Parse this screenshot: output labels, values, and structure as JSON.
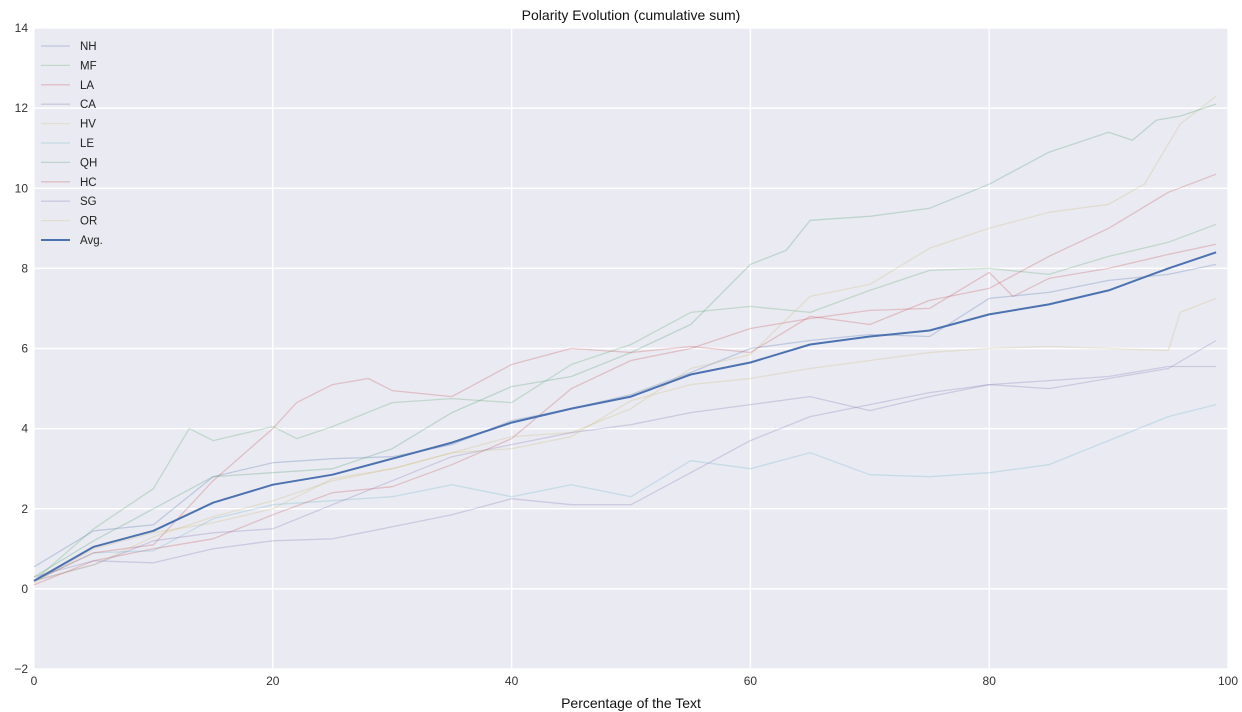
{
  "chart_data": {
    "type": "line",
    "title": "Polarity Evolution (cumulative sum)",
    "xlabel": "Percentage of the Text",
    "ylabel": "",
    "xlim": [
      0,
      100
    ],
    "ylim": [
      -2,
      14
    ],
    "xticks": [
      0,
      20,
      40,
      60,
      80,
      100
    ],
    "yticks": [
      -2,
      0,
      2,
      4,
      6,
      8,
      10,
      12,
      14
    ],
    "grid": true,
    "legend_position": "top-left",
    "background": "#eaeaf2",
    "series": [
      {
        "name": "NH",
        "color": "#4c72b0",
        "alpha": 0.28,
        "width": 1.3,
        "points": [
          [
            0,
            0.55
          ],
          [
            5,
            1.45
          ],
          [
            10,
            1.6
          ],
          [
            15,
            2.8
          ],
          [
            20,
            3.15
          ],
          [
            25,
            3.25
          ],
          [
            30,
            3.3
          ],
          [
            35,
            3.6
          ],
          [
            40,
            4.2
          ],
          [
            45,
            4.5
          ],
          [
            50,
            4.85
          ],
          [
            55,
            5.4
          ],
          [
            60,
            6.0
          ],
          [
            65,
            6.2
          ],
          [
            70,
            6.35
          ],
          [
            75,
            6.3
          ],
          [
            80,
            7.25
          ],
          [
            85,
            7.4
          ],
          [
            90,
            7.7
          ],
          [
            95,
            7.85
          ],
          [
            99,
            8.1
          ]
        ]
      },
      {
        "name": "MF",
        "color": "#55a868",
        "alpha": 0.28,
        "width": 1.3,
        "points": [
          [
            0,
            0.2
          ],
          [
            5,
            1.5
          ],
          [
            8,
            2.1
          ],
          [
            10,
            2.5
          ],
          [
            13,
            4.0
          ],
          [
            15,
            3.7
          ],
          [
            20,
            4.05
          ],
          [
            22,
            3.75
          ],
          [
            25,
            4.05
          ],
          [
            30,
            4.65
          ],
          [
            35,
            4.75
          ],
          [
            40,
            4.65
          ],
          [
            45,
            5.6
          ],
          [
            50,
            6.1
          ],
          [
            55,
            6.9
          ],
          [
            60,
            7.05
          ],
          [
            65,
            6.9
          ],
          [
            70,
            7.45
          ],
          [
            75,
            7.95
          ],
          [
            80,
            8.0
          ],
          [
            85,
            7.85
          ],
          [
            90,
            8.3
          ],
          [
            95,
            8.65
          ],
          [
            99,
            9.1
          ]
        ]
      },
      {
        "name": "LA",
        "color": "#c44e52",
        "alpha": 0.28,
        "width": 1.3,
        "points": [
          [
            0,
            0.1
          ],
          [
            5,
            0.7
          ],
          [
            10,
            1.0
          ],
          [
            15,
            1.25
          ],
          [
            20,
            1.85
          ],
          [
            25,
            2.4
          ],
          [
            30,
            2.55
          ],
          [
            35,
            3.1
          ],
          [
            40,
            3.75
          ],
          [
            45,
            5.0
          ],
          [
            50,
            5.7
          ],
          [
            55,
            6.0
          ],
          [
            60,
            6.5
          ],
          [
            65,
            6.75
          ],
          [
            70,
            6.95
          ],
          [
            75,
            7.0
          ],
          [
            80,
            7.9
          ],
          [
            82,
            7.3
          ],
          [
            85,
            7.75
          ],
          [
            90,
            8.0
          ],
          [
            95,
            8.35
          ],
          [
            99,
            8.6
          ]
        ]
      },
      {
        "name": "CA",
        "color": "#8172b2",
        "alpha": 0.28,
        "width": 1.3,
        "points": [
          [
            0,
            0.3
          ],
          [
            5,
            0.7
          ],
          [
            10,
            0.65
          ],
          [
            15,
            1.0
          ],
          [
            20,
            1.2
          ],
          [
            25,
            1.25
          ],
          [
            30,
            1.55
          ],
          [
            35,
            1.85
          ],
          [
            40,
            2.25
          ],
          [
            45,
            2.1
          ],
          [
            50,
            2.1
          ],
          [
            55,
            2.9
          ],
          [
            60,
            3.7
          ],
          [
            65,
            4.3
          ],
          [
            70,
            4.6
          ],
          [
            75,
            4.9
          ],
          [
            80,
            5.1
          ],
          [
            85,
            5.0
          ],
          [
            90,
            5.25
          ],
          [
            95,
            5.5
          ],
          [
            99,
            6.2
          ]
        ]
      },
      {
        "name": "HV",
        "color": "#ccb974",
        "alpha": 0.28,
        "width": 1.3,
        "points": [
          [
            0,
            0.15
          ],
          [
            5,
            1.0
          ],
          [
            10,
            1.4
          ],
          [
            15,
            1.65
          ],
          [
            20,
            2.0
          ],
          [
            25,
            2.75
          ],
          [
            30,
            3.0
          ],
          [
            35,
            3.4
          ],
          [
            40,
            3.8
          ],
          [
            45,
            3.9
          ],
          [
            50,
            4.5
          ],
          [
            55,
            5.5
          ],
          [
            60,
            5.85
          ],
          [
            65,
            7.3
          ],
          [
            70,
            7.6
          ],
          [
            75,
            8.5
          ],
          [
            80,
            9.0
          ],
          [
            85,
            9.4
          ],
          [
            90,
            9.6
          ],
          [
            93,
            10.1
          ],
          [
            96,
            11.6
          ],
          [
            99,
            12.3
          ]
        ]
      },
      {
        "name": "LE",
        "color": "#64b5cd",
        "alpha": 0.28,
        "width": 1.3,
        "points": [
          [
            0,
            0.2
          ],
          [
            5,
            0.9
          ],
          [
            10,
            0.95
          ],
          [
            15,
            1.75
          ],
          [
            20,
            2.1
          ],
          [
            25,
            2.2
          ],
          [
            30,
            2.3
          ],
          [
            35,
            2.6
          ],
          [
            40,
            2.3
          ],
          [
            45,
            2.6
          ],
          [
            50,
            2.3
          ],
          [
            55,
            3.2
          ],
          [
            60,
            3.0
          ],
          [
            65,
            3.4
          ],
          [
            70,
            2.85
          ],
          [
            75,
            2.8
          ],
          [
            80,
            2.9
          ],
          [
            85,
            3.1
          ],
          [
            90,
            3.7
          ],
          [
            95,
            4.3
          ],
          [
            99,
            4.6
          ]
        ]
      },
      {
        "name": "QH",
        "color": "#4c9f70",
        "alpha": 0.28,
        "width": 1.3,
        "points": [
          [
            0,
            0.3
          ],
          [
            5,
            1.2
          ],
          [
            10,
            2.0
          ],
          [
            15,
            2.8
          ],
          [
            20,
            2.9
          ],
          [
            25,
            3.0
          ],
          [
            30,
            3.5
          ],
          [
            35,
            4.4
          ],
          [
            40,
            5.05
          ],
          [
            45,
            5.3
          ],
          [
            50,
            5.9
          ],
          [
            55,
            6.6
          ],
          [
            60,
            8.1
          ],
          [
            63,
            8.45
          ],
          [
            65,
            9.2
          ],
          [
            70,
            9.3
          ],
          [
            75,
            9.5
          ],
          [
            80,
            10.1
          ],
          [
            85,
            10.9
          ],
          [
            90,
            11.4
          ],
          [
            92,
            11.2
          ],
          [
            94,
            11.7
          ],
          [
            96,
            11.8
          ],
          [
            99,
            12.1
          ]
        ]
      },
      {
        "name": "HC",
        "color": "#c44e52",
        "alpha": 0.28,
        "width": 1.3,
        "points": [
          [
            0,
            0.2
          ],
          [
            5,
            0.9
          ],
          [
            10,
            1.1
          ],
          [
            15,
            2.7
          ],
          [
            20,
            4.0
          ],
          [
            22,
            4.65
          ],
          [
            25,
            5.1
          ],
          [
            28,
            5.25
          ],
          [
            30,
            4.95
          ],
          [
            35,
            4.8
          ],
          [
            40,
            5.6
          ],
          [
            45,
            6.0
          ],
          [
            50,
            5.9
          ],
          [
            55,
            6.05
          ],
          [
            60,
            5.9
          ],
          [
            65,
            6.8
          ],
          [
            70,
            6.6
          ],
          [
            75,
            7.2
          ],
          [
            80,
            7.5
          ],
          [
            85,
            8.3
          ],
          [
            90,
            9.0
          ],
          [
            95,
            9.9
          ],
          [
            99,
            10.35
          ]
        ]
      },
      {
        "name": "SG",
        "color": "#8172b2",
        "alpha": 0.28,
        "width": 1.3,
        "points": [
          [
            0,
            0.2
          ],
          [
            5,
            0.6
          ],
          [
            10,
            1.2
          ],
          [
            15,
            1.4
          ],
          [
            20,
            1.5
          ],
          [
            25,
            2.1
          ],
          [
            30,
            2.7
          ],
          [
            35,
            3.3
          ],
          [
            40,
            3.6
          ],
          [
            45,
            3.9
          ],
          [
            50,
            4.1
          ],
          [
            55,
            4.4
          ],
          [
            60,
            4.6
          ],
          [
            65,
            4.8
          ],
          [
            70,
            4.45
          ],
          [
            75,
            4.8
          ],
          [
            80,
            5.1
          ],
          [
            85,
            5.2
          ],
          [
            90,
            5.3
          ],
          [
            95,
            5.55
          ],
          [
            99,
            5.55
          ]
        ]
      },
      {
        "name": "OR",
        "color": "#ccb974",
        "alpha": 0.28,
        "width": 1.3,
        "points": [
          [
            0,
            0.2
          ],
          [
            5,
            0.6
          ],
          [
            10,
            1.3
          ],
          [
            15,
            1.8
          ],
          [
            20,
            2.2
          ],
          [
            25,
            2.7
          ],
          [
            30,
            3.0
          ],
          [
            35,
            3.4
          ],
          [
            40,
            3.5
          ],
          [
            45,
            3.8
          ],
          [
            50,
            4.7
          ],
          [
            55,
            5.1
          ],
          [
            60,
            5.25
          ],
          [
            65,
            5.5
          ],
          [
            70,
            5.7
          ],
          [
            75,
            5.9
          ],
          [
            80,
            6.0
          ],
          [
            85,
            6.05
          ],
          [
            90,
            6.0
          ],
          [
            95,
            5.95
          ],
          [
            96,
            6.9
          ],
          [
            99,
            7.25
          ]
        ]
      },
      {
        "name": "Avg.",
        "color": "#4c72b0",
        "alpha": 1.0,
        "width": 2.0,
        "points": [
          [
            0,
            0.2
          ],
          [
            5,
            1.05
          ],
          [
            10,
            1.45
          ],
          [
            15,
            2.15
          ],
          [
            20,
            2.6
          ],
          [
            25,
            2.85
          ],
          [
            30,
            3.25
          ],
          [
            35,
            3.65
          ],
          [
            40,
            4.15
          ],
          [
            45,
            4.5
          ],
          [
            50,
            4.8
          ],
          [
            55,
            5.35
          ],
          [
            60,
            5.65
          ],
          [
            65,
            6.1
          ],
          [
            70,
            6.3
          ],
          [
            75,
            6.45
          ],
          [
            80,
            6.85
          ],
          [
            85,
            7.1
          ],
          [
            90,
            7.45
          ],
          [
            95,
            8.0
          ],
          [
            99,
            8.4
          ]
        ]
      }
    ]
  }
}
